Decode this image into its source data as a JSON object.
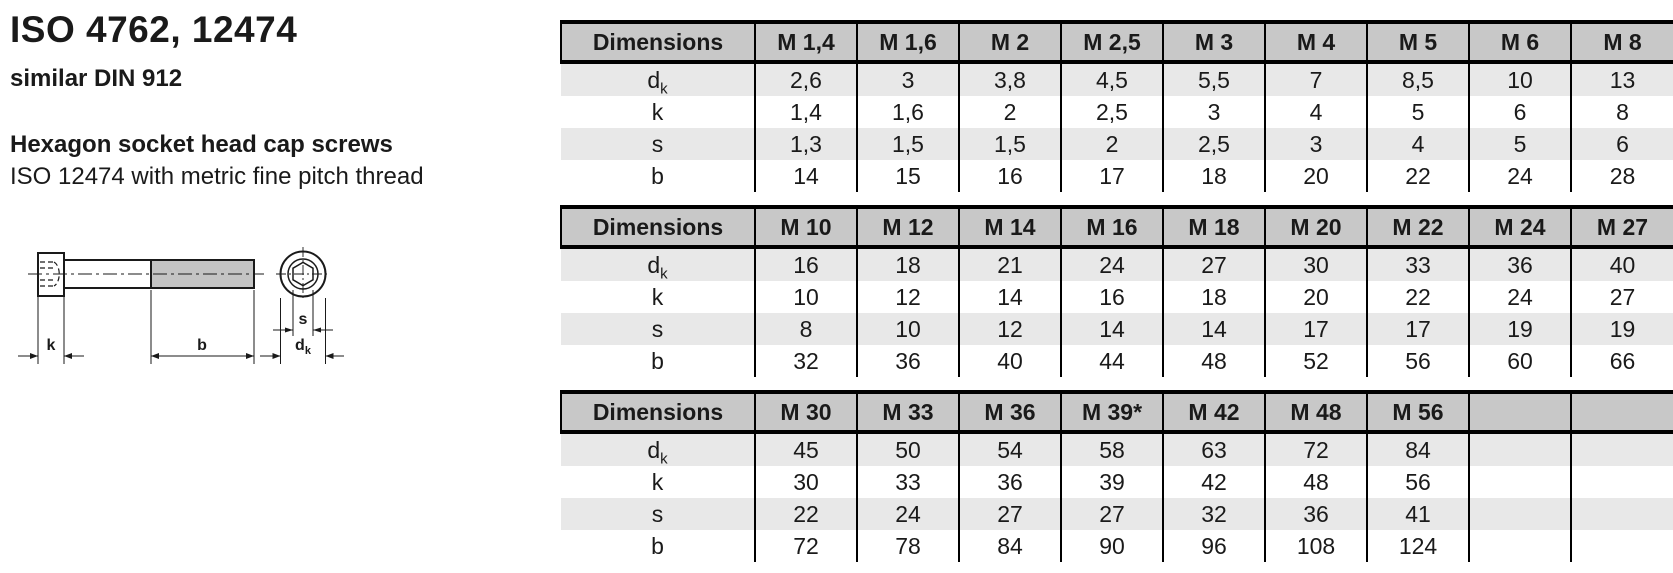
{
  "page": {
    "title": "ISO 4762, 12474",
    "subtitle": "similar DIN 912",
    "product_name": "Hexagon socket head cap screws",
    "product_note": "ISO 12474 with metric fine pitch thread"
  },
  "drawing": {
    "labels": {
      "head_height": "k",
      "thread_length": "b",
      "socket_size": "s",
      "head_dia_main": "d",
      "head_dia_sub": "k"
    }
  },
  "tables": [
    {
      "header_label": "Dimensions",
      "columns": [
        "M 1,4",
        "M 1,6",
        "M 2",
        "M 2,5",
        "M 3",
        "M 4",
        "M 5",
        "M 6",
        "M 8"
      ],
      "rows": [
        {
          "label": "d",
          "label_sub": "k",
          "values": [
            "2,6",
            "3",
            "3,8",
            "4,5",
            "5,5",
            "7",
            "8,5",
            "10",
            "13"
          ]
        },
        {
          "label": "k",
          "label_sub": "",
          "values": [
            "1,4",
            "1,6",
            "2",
            "2,5",
            "3",
            "4",
            "5",
            "6",
            "8"
          ]
        },
        {
          "label": "s",
          "label_sub": "",
          "values": [
            "1,3",
            "1,5",
            "1,5",
            "2",
            "2,5",
            "3",
            "4",
            "5",
            "6"
          ]
        },
        {
          "label": "b",
          "label_sub": "",
          "values": [
            "14",
            "15",
            "16",
            "17",
            "18",
            "20",
            "22",
            "24",
            "28"
          ]
        }
      ]
    },
    {
      "header_label": "Dimensions",
      "columns": [
        "M 10",
        "M 12",
        "M 14",
        "M 16",
        "M 18",
        "M 20",
        "M 22",
        "M 24",
        "M 27"
      ],
      "rows": [
        {
          "label": "d",
          "label_sub": "k",
          "values": [
            "16",
            "18",
            "21",
            "24",
            "27",
            "30",
            "33",
            "36",
            "40"
          ]
        },
        {
          "label": "k",
          "label_sub": "",
          "values": [
            "10",
            "12",
            "14",
            "16",
            "18",
            "20",
            "22",
            "24",
            "27"
          ]
        },
        {
          "label": "s",
          "label_sub": "",
          "values": [
            "8",
            "10",
            "12",
            "14",
            "14",
            "17",
            "17",
            "19",
            "19"
          ]
        },
        {
          "label": "b",
          "label_sub": "",
          "values": [
            "32",
            "36",
            "40",
            "44",
            "48",
            "52",
            "56",
            "60",
            "66"
          ]
        }
      ]
    },
    {
      "header_label": "Dimensions",
      "columns": [
        "M 30",
        "M 33",
        "M 36",
        "M 39*",
        "M 42",
        "M 48",
        "M 56",
        "",
        ""
      ],
      "rows": [
        {
          "label": "d",
          "label_sub": "k",
          "values": [
            "45",
            "50",
            "54",
            "58",
            "63",
            "72",
            "84",
            "",
            ""
          ]
        },
        {
          "label": "k",
          "label_sub": "",
          "values": [
            "30",
            "33",
            "36",
            "39",
            "42",
            "48",
            "56",
            "",
            ""
          ]
        },
        {
          "label": "s",
          "label_sub": "",
          "values": [
            "22",
            "24",
            "27",
            "27",
            "32",
            "36",
            "41",
            "",
            ""
          ]
        },
        {
          "label": "b",
          "label_sub": "",
          "values": [
            "72",
            "78",
            "84",
            "90",
            "96",
            "108",
            "124",
            "",
            ""
          ]
        }
      ]
    }
  ],
  "colors": {
    "header_bg": "#c8c8c8",
    "row_alt_bg": "#e8e8e8",
    "border": "#000000",
    "text": "#1a1a1a",
    "thread_fill": "#c4c4c4"
  }
}
